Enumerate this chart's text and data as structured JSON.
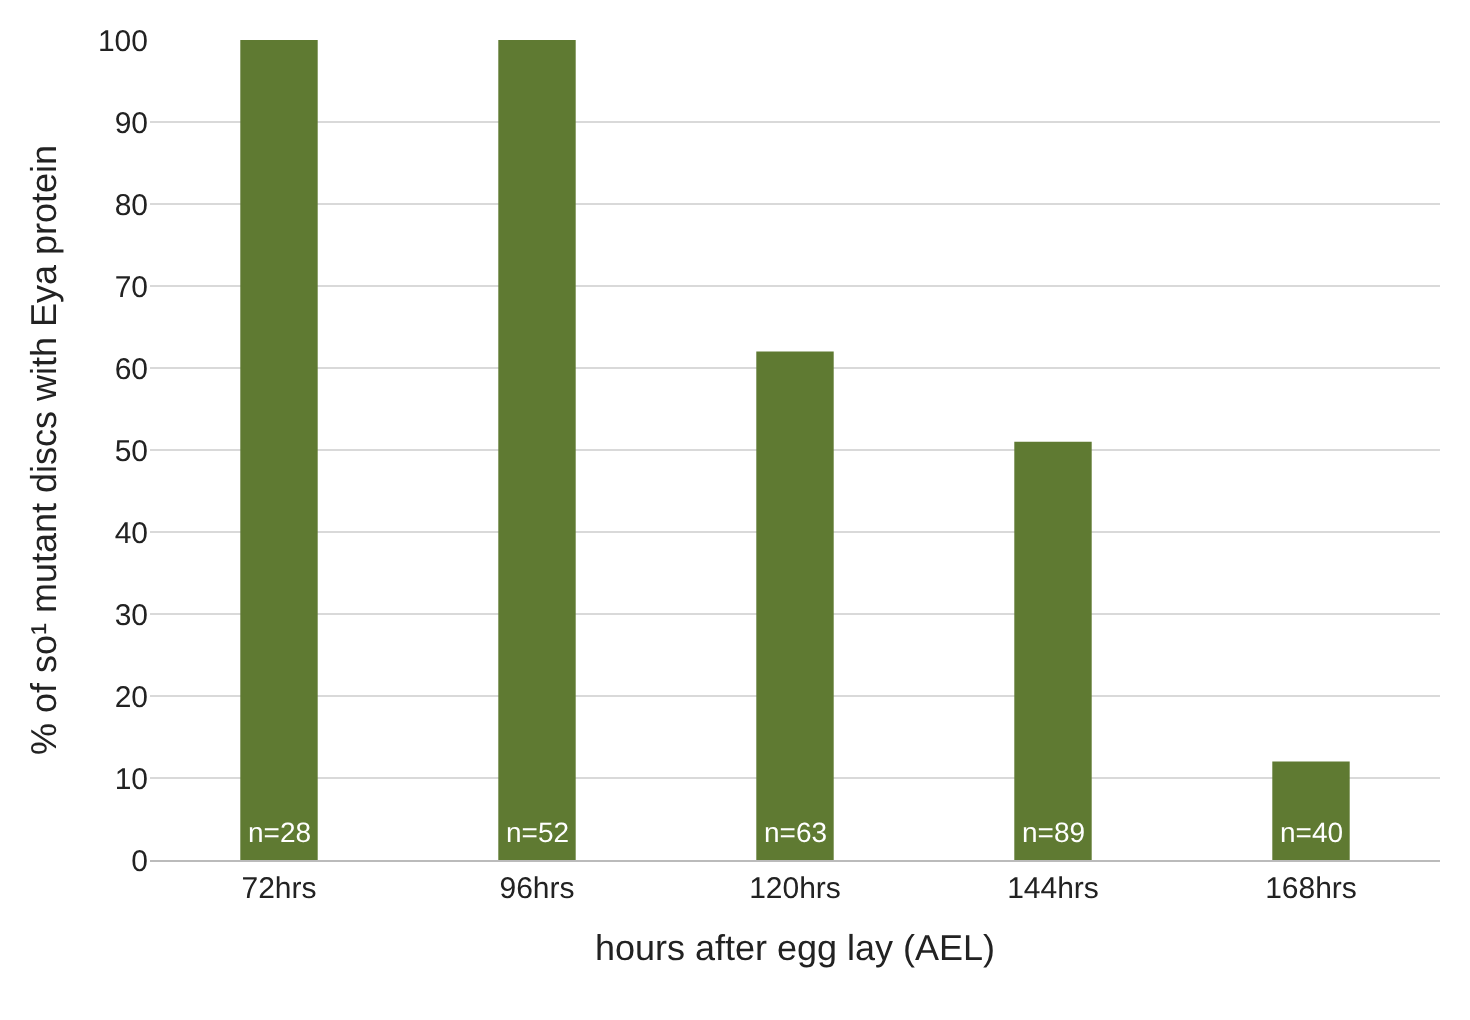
{
  "chart_data": {
    "type": "bar",
    "xlabel": "hours after egg lay (AEL)",
    "ylabel": "% of so¹ mutant discs with Eya protein",
    "categories": [
      "72hrs",
      "96hrs",
      "120hrs",
      "144hrs",
      "168hrs"
    ],
    "values": [
      100,
      100,
      62,
      51,
      12
    ],
    "color": "#5f7a32",
    "ylim": [
      0,
      100
    ],
    "yticks": [
      0,
      10,
      20,
      30,
      40,
      50,
      60,
      70,
      80,
      90,
      100
    ],
    "grid": "y",
    "annotations": [
      "n=28",
      "n=52",
      "n=63",
      "n=89",
      "n=40"
    ]
  }
}
